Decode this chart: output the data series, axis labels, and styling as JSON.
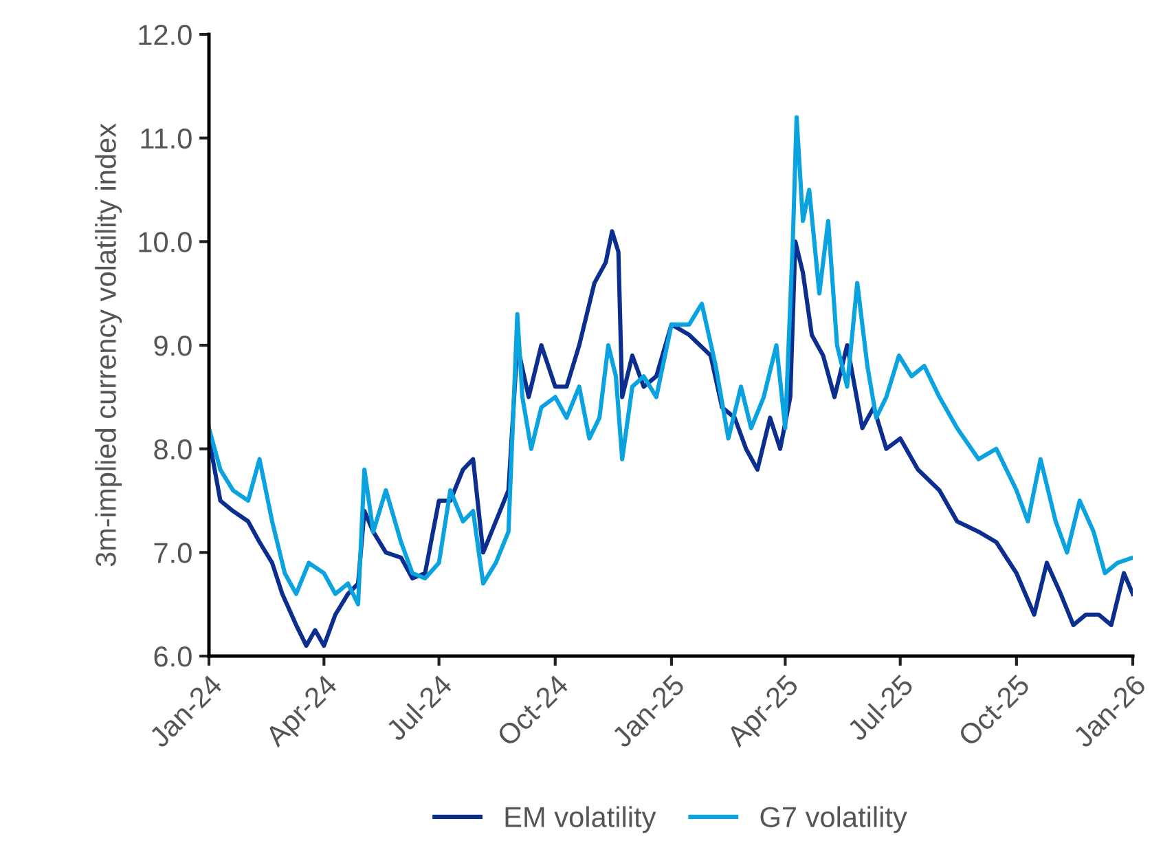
{
  "chart_data": {
    "type": "line",
    "ylabel": "3m-implied currency volatility index",
    "legend": "bottom",
    "grid": false,
    "line_style": "solid",
    "marker": "none",
    "xlim": [
      "2024-01-01",
      "2026-01-01"
    ],
    "xticks": [
      {
        "value": "2024-01-01",
        "label": "Jan-24"
      },
      {
        "value": "2024-04-01",
        "label": "Apr-24"
      },
      {
        "value": "2024-07-01",
        "label": "Jul-24"
      },
      {
        "value": "2024-10-01",
        "label": "Oct-24"
      },
      {
        "value": "2025-01-01",
        "label": "Jan-25"
      },
      {
        "value": "2025-04-01",
        "label": "Apr-25"
      },
      {
        "value": "2025-07-01",
        "label": "Jul-25"
      },
      {
        "value": "2025-10-01",
        "label": "Oct-25"
      },
      {
        "value": "2026-01-01",
        "label": "Jan-26"
      }
    ],
    "ylim": [
      6,
      12
    ],
    "yticks": [
      {
        "value": 6,
        "label": "6.0"
      },
      {
        "value": 7,
        "label": "7.0"
      },
      {
        "value": 8,
        "label": "8.0"
      },
      {
        "value": 9,
        "label": "9.0"
      },
      {
        "value": 10,
        "label": "10.0"
      },
      {
        "value": 11,
        "label": "11.0"
      },
      {
        "value": 12,
        "label": "12.0"
      }
    ],
    "series": [
      {
        "name": "EM volatility",
        "color": "#0b2e8f",
        "x": [
          "2024-01-01",
          "2024-01-10",
          "2024-01-20",
          "2024-02-01",
          "2024-02-10",
          "2024-02-20",
          "2024-02-28",
          "2024-03-10",
          "2024-03-18",
          "2024-03-25",
          "2024-04-01",
          "2024-04-10",
          "2024-04-20",
          "2024-04-28",
          "2024-05-03",
          "2024-05-10",
          "2024-05-20",
          "2024-06-01",
          "2024-06-10",
          "2024-06-20",
          "2024-07-01",
          "2024-07-10",
          "2024-07-20",
          "2024-07-28",
          "2024-08-05",
          "2024-08-15",
          "2024-08-25",
          "2024-09-01",
          "2024-09-10",
          "2024-09-20",
          "2024-10-01",
          "2024-10-10",
          "2024-10-20",
          "2024-11-01",
          "2024-11-10",
          "2024-11-15",
          "2024-11-20",
          "2024-11-23",
          "2024-12-01",
          "2024-12-10",
          "2024-12-20",
          "2025-01-01",
          "2025-01-15",
          "2025-02-01",
          "2025-02-10",
          "2025-02-20",
          "2025-03-01",
          "2025-03-10",
          "2025-03-20",
          "2025-03-28",
          "2025-04-05",
          "2025-04-09",
          "2025-04-15",
          "2025-04-22",
          "2025-05-01",
          "2025-05-10",
          "2025-05-20",
          "2025-06-01",
          "2025-06-10",
          "2025-06-20",
          "2025-07-01",
          "2025-07-15",
          "2025-08-01",
          "2025-08-15",
          "2025-09-01",
          "2025-09-15",
          "2025-10-01",
          "2025-10-15",
          "2025-10-25",
          "2025-11-05",
          "2025-11-15",
          "2025-11-25",
          "2025-12-05",
          "2025-12-15",
          "2025-12-25",
          "2026-01-01"
        ],
        "values": [
          8.1,
          7.5,
          7.4,
          7.3,
          7.1,
          6.9,
          6.6,
          6.3,
          6.1,
          6.25,
          6.1,
          6.4,
          6.6,
          6.7,
          7.4,
          7.2,
          7.0,
          6.95,
          6.75,
          6.8,
          7.5,
          7.5,
          7.8,
          7.9,
          7.0,
          7.3,
          7.6,
          9.0,
          8.5,
          9.0,
          8.6,
          8.6,
          9.0,
          9.6,
          9.8,
          10.1,
          9.9,
          8.5,
          8.9,
          8.6,
          8.7,
          9.2,
          9.1,
          8.9,
          8.4,
          8.3,
          8.0,
          7.8,
          8.3,
          8.0,
          8.5,
          10.0,
          9.7,
          9.1,
          8.9,
          8.5,
          9.0,
          8.2,
          8.4,
          8.0,
          8.1,
          7.8,
          7.6,
          7.3,
          7.2,
          7.1,
          6.8,
          6.4,
          6.9,
          6.6,
          6.3,
          6.4,
          6.4,
          6.3,
          6.8,
          6.6
        ]
      },
      {
        "name": "G7 volatility",
        "color": "#0ba3df",
        "x": [
          "2024-01-01",
          "2024-01-10",
          "2024-01-20",
          "2024-02-01",
          "2024-02-10",
          "2024-02-20",
          "2024-03-01",
          "2024-03-10",
          "2024-03-20",
          "2024-04-01",
          "2024-04-10",
          "2024-04-20",
          "2024-04-28",
          "2024-05-03",
          "2024-05-10",
          "2024-05-20",
          "2024-06-01",
          "2024-06-10",
          "2024-06-20",
          "2024-07-01",
          "2024-07-10",
          "2024-07-20",
          "2024-07-28",
          "2024-08-05",
          "2024-08-15",
          "2024-08-25",
          "2024-09-01",
          "2024-09-05",
          "2024-09-12",
          "2024-09-20",
          "2024-10-01",
          "2024-10-10",
          "2024-10-20",
          "2024-10-28",
          "2024-11-05",
          "2024-11-12",
          "2024-11-18",
          "2024-11-23",
          "2024-12-01",
          "2024-12-10",
          "2024-12-20",
          "2025-01-01",
          "2025-01-15",
          "2025-01-25",
          "2025-02-05",
          "2025-02-15",
          "2025-02-25",
          "2025-03-05",
          "2025-03-15",
          "2025-03-25",
          "2025-04-01",
          "2025-04-07",
          "2025-04-10",
          "2025-04-15",
          "2025-04-20",
          "2025-04-28",
          "2025-05-05",
          "2025-05-12",
          "2025-05-20",
          "2025-05-28",
          "2025-06-05",
          "2025-06-12",
          "2025-06-20",
          "2025-06-30",
          "2025-07-10",
          "2025-07-20",
          "2025-08-01",
          "2025-08-15",
          "2025-09-01",
          "2025-09-15",
          "2025-10-01",
          "2025-10-10",
          "2025-10-20",
          "2025-11-01",
          "2025-11-10",
          "2025-11-20",
          "2025-12-01",
          "2025-12-10",
          "2025-12-20",
          "2026-01-01"
        ],
        "values": [
          8.2,
          7.8,
          7.6,
          7.5,
          7.9,
          7.3,
          6.8,
          6.6,
          6.9,
          6.8,
          6.6,
          6.7,
          6.5,
          7.8,
          7.2,
          7.6,
          7.1,
          6.8,
          6.75,
          6.9,
          7.6,
          7.3,
          7.4,
          6.7,
          6.9,
          7.2,
          9.3,
          8.5,
          8.0,
          8.4,
          8.5,
          8.3,
          8.6,
          8.1,
          8.3,
          9.0,
          8.7,
          7.9,
          8.6,
          8.7,
          8.5,
          9.2,
          9.2,
          9.4,
          8.8,
          8.1,
          8.6,
          8.2,
          8.5,
          9.0,
          8.2,
          10.0,
          11.2,
          10.2,
          10.5,
          9.5,
          10.2,
          9.0,
          8.6,
          9.6,
          8.8,
          8.3,
          8.5,
          8.9,
          8.7,
          8.8,
          8.5,
          8.2,
          7.9,
          8.0,
          7.6,
          7.3,
          7.9,
          7.3,
          7.0,
          7.5,
          7.2,
          6.8,
          6.9,
          6.95
        ]
      }
    ]
  }
}
